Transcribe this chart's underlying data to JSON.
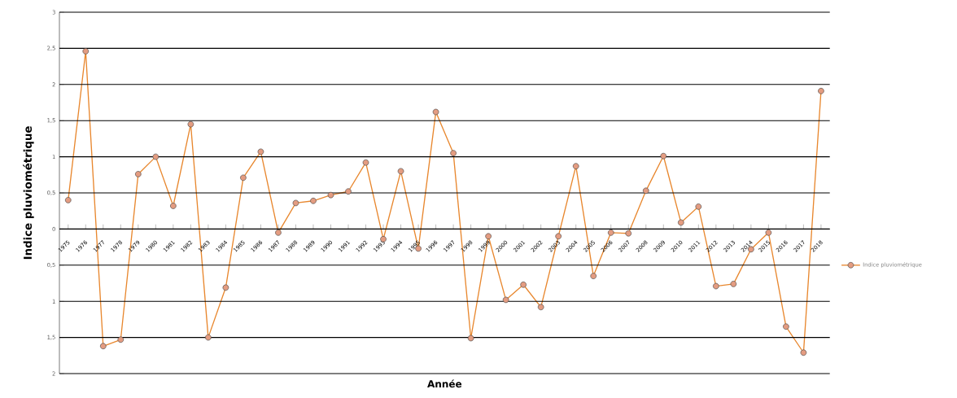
{
  "chart_data": {
    "type": "line",
    "xlabel": "Année",
    "ylabel": "Indice pluviométrique",
    "categories": [
      "1975",
      "1976",
      "1977",
      "1978",
      "1979",
      "1980",
      "1981",
      "1982",
      "1983",
      "1984",
      "1985",
      "1986",
      "1987",
      "1988",
      "1989",
      "1990",
      "1991",
      "1992",
      "1993",
      "1994",
      "1995",
      "1996",
      "1997",
      "1998",
      "1999",
      "2000",
      "2001",
      "2002",
      "2003",
      "2004",
      "2005",
      "2006",
      "2007",
      "2008",
      "2009",
      "2010",
      "2011",
      "2012",
      "2013",
      "2014",
      "2015",
      "2016",
      "2017",
      "2018"
    ],
    "series": [
      {
        "name": "Indice pluviométrique",
        "color": "#e8872e",
        "values": [
          0.4,
          2.46,
          -1.62,
          -1.53,
          0.76,
          1.0,
          0.32,
          1.45,
          -1.5,
          -0.81,
          0.71,
          1.07,
          -0.05,
          0.36,
          0.39,
          0.47,
          0.52,
          0.92,
          -0.14,
          0.8,
          -0.27,
          1.62,
          1.05,
          -1.51,
          -0.1,
          -0.98,
          -0.77,
          -1.08,
          -0.1,
          0.87,
          -0.65,
          -0.05,
          -0.06,
          0.53,
          1.01,
          0.09,
          0.31,
          -0.79,
          -0.76,
          -0.28,
          -0.05,
          -1.35,
          -1.71,
          1.91
        ]
      }
    ],
    "ylim": [
      -2,
      3
    ],
    "yticks": [
      {
        "value": -2,
        "label": "2"
      },
      {
        "value": -1.5,
        "label": "1,5"
      },
      {
        "value": -1,
        "label": "1"
      },
      {
        "value": -0.5,
        "label": "0,5"
      },
      0,
      {
        "value": 0.5,
        "label": "0,5"
      },
      1,
      {
        "value": 1.5,
        "label": "1,5"
      },
      2,
      {
        "value": 2.5,
        "label": "2,5"
      },
      3
    ],
    "grid": "y",
    "legend": "right",
    "marker": "circle",
    "line_style": "solid"
  }
}
